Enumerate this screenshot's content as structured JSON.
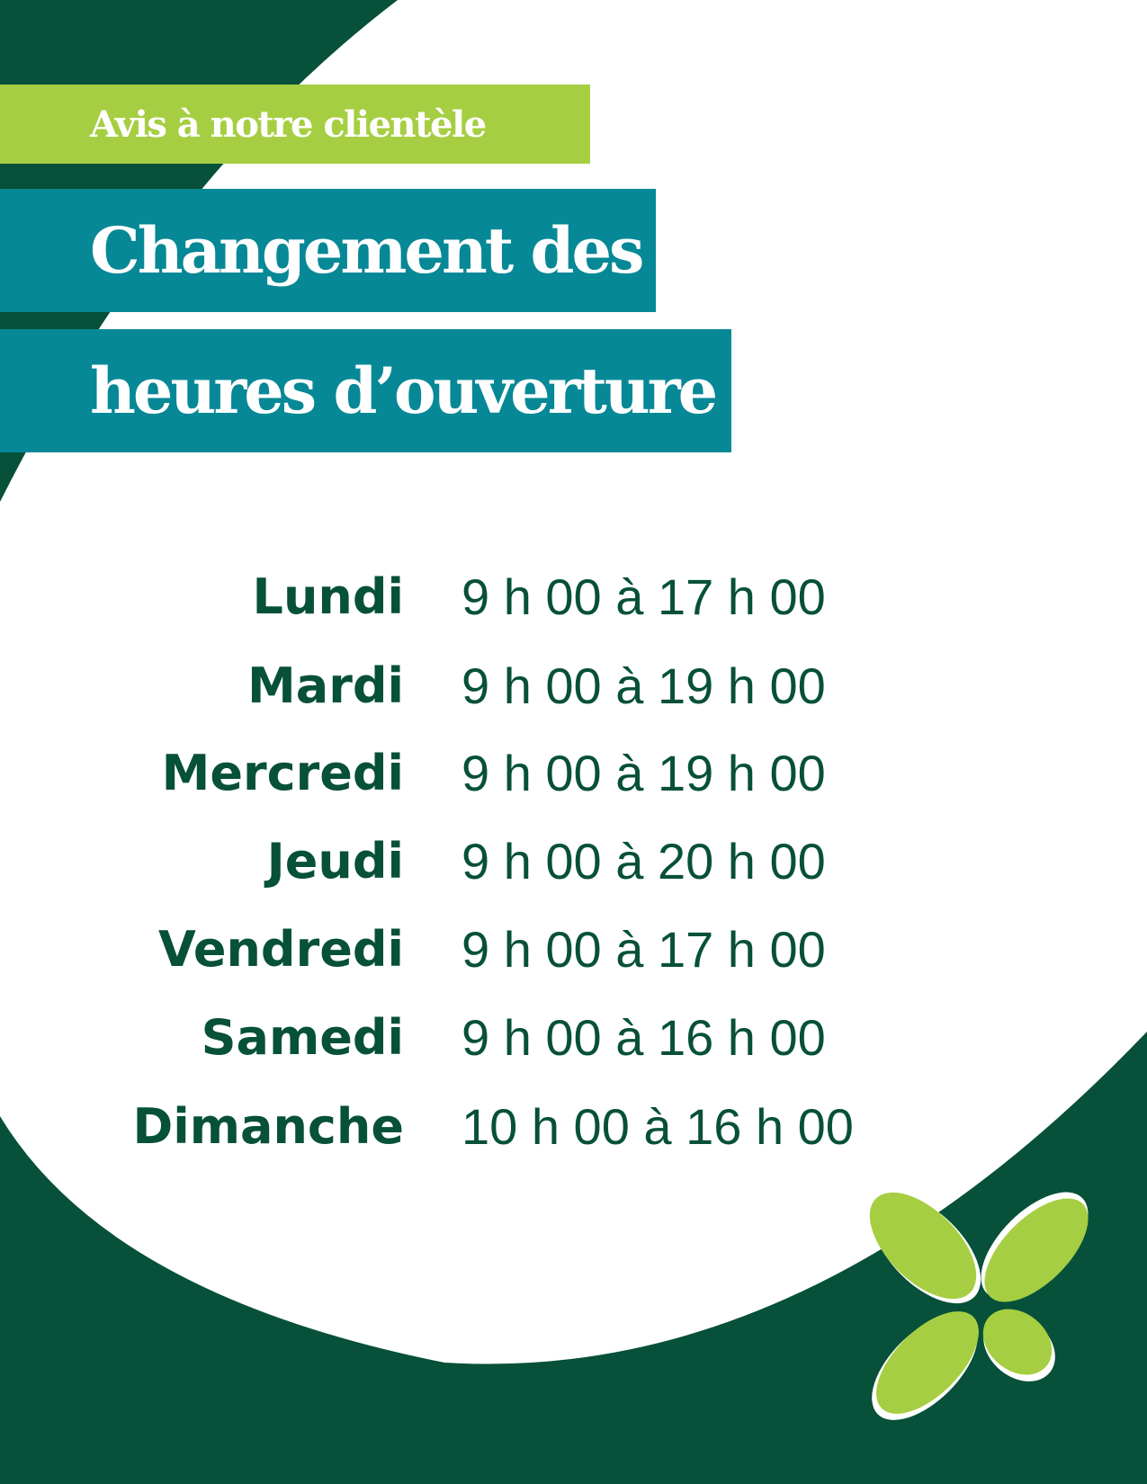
{
  "header": {
    "notice": "Avis à notre clientèle",
    "title_line1": "Changement des",
    "title_line2": "heures d’ouverture"
  },
  "schedule": [
    {
      "day": "Lundi",
      "hours": "9 h 00 à 17 h 00"
    },
    {
      "day": "Mardi",
      "hours": "9 h 00 à 19 h 00"
    },
    {
      "day": "Mercredi",
      "hours": "9 h 00 à 19 h 00"
    },
    {
      "day": "Jeudi",
      "hours": "9 h 00 à 20 h 00"
    },
    {
      "day": "Vendredi",
      "hours": "9 h 00 à 17 h 00"
    },
    {
      "day": "Samedi",
      "hours": "9 h 00 à 16 h 00"
    },
    {
      "day": "Dimanche",
      "hours": "10 h 00 à 16 h 00"
    }
  ],
  "colors": {
    "dark_green": "#07503a",
    "lime": "#a6ce42",
    "teal": "#078896"
  },
  "logo": {
    "icon": "four-petal-leaf-logo"
  }
}
